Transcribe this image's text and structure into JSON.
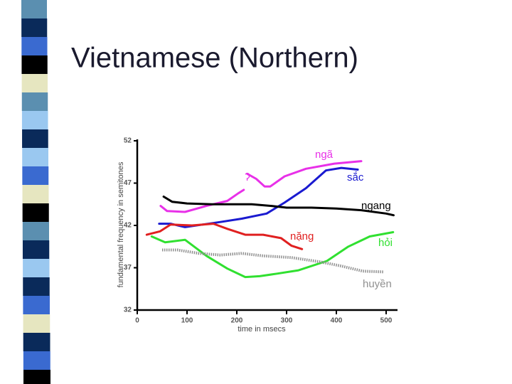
{
  "slide_title": "Vietnamese (Northern)",
  "chart_data": {
    "type": "line",
    "x_label": "time in msecs",
    "y_label": "fundamental frequency in semitones",
    "xlim": [
      0,
      520
    ],
    "xticks": [
      0,
      100,
      200,
      300,
      400,
      500
    ],
    "ylim": [
      32,
      52
    ],
    "yticks": [
      32,
      37,
      42,
      47,
      52
    ],
    "annotations": [
      "ʔ"
    ],
    "series": [
      {
        "name": "ngã",
        "color": "#e830e8",
        "style": "solid",
        "x": [
          47,
          60,
          96,
          139,
          181,
          203,
          214,
          217,
          221,
          239,
          256,
          267,
          296,
          339,
          396,
          450
        ],
        "values": [
          44.3,
          43.7,
          43.6,
          44.3,
          44.9,
          45.8,
          46.2,
          null,
          48.1,
          47.5,
          46.6,
          46.6,
          47.8,
          48.7,
          49.3,
          49.6
        ]
      },
      {
        "name": "sắc",
        "color": "#1a1ad0",
        "style": "solid",
        "x": [
          44,
          67,
          96,
          131,
          167,
          210,
          260,
          296,
          339,
          379,
          410,
          443
        ],
        "values": [
          42.2,
          42.2,
          41.8,
          42.1,
          42.4,
          42.8,
          43.4,
          44.7,
          46.4,
          48.5,
          48.8,
          48.6
        ]
      },
      {
        "name": "ngang",
        "color": "#000000",
        "style": "solid",
        "x": [
          53,
          70,
          100,
          150,
          200,
          230,
          270,
          300,
          350,
          400,
          450,
          500,
          515
        ],
        "values": [
          45.4,
          44.8,
          44.6,
          44.5,
          44.5,
          44.5,
          44.3,
          44.1,
          44.1,
          44.0,
          43.8,
          43.4,
          43.2
        ]
      },
      {
        "name": "nặng",
        "color": "#e02020",
        "style": "solid",
        "x": [
          19,
          46,
          67,
          110,
          153,
          181,
          217,
          253,
          289,
          310,
          331
        ],
        "values": [
          40.9,
          41.3,
          42.1,
          42.0,
          42.2,
          41.6,
          40.9,
          40.9,
          40.5,
          39.6,
          39.2
        ]
      },
      {
        "name": "hỏi",
        "color": "#30e030",
        "style": "solid",
        "x": [
          29,
          56,
          96,
          139,
          181,
          217,
          246,
          281,
          324,
          381,
          424,
          467,
          514
        ],
        "values": [
          40.7,
          40.0,
          40.3,
          38.4,
          36.9,
          35.9,
          36.0,
          36.3,
          36.7,
          37.8,
          39.5,
          40.7,
          41.2
        ]
      },
      {
        "name": "huyền",
        "color": "#909090",
        "style": "dotted",
        "x": [
          50,
          81,
          124,
          167,
          210,
          253,
          310,
          367,
          410,
          453,
          496
        ],
        "values": [
          39.1,
          39.1,
          38.7,
          38.5,
          38.7,
          38.4,
          38.2,
          37.7,
          37.2,
          36.6,
          36.5
        ]
      }
    ]
  }
}
